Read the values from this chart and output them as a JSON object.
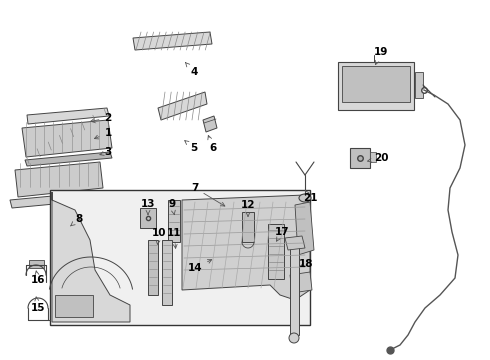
{
  "bg_color": "#ffffff",
  "lc": "#444444",
  "lw": 0.6,
  "fig_w": 4.9,
  "fig_h": 3.6,
  "dpi": 100,
  "annotations": [
    [
      "2",
      108,
      118,
      87,
      122
    ],
    [
      "1",
      108,
      133,
      91,
      140
    ],
    [
      "3",
      108,
      152,
      99,
      155
    ],
    [
      "4",
      194,
      72,
      185,
      62
    ],
    [
      "5",
      194,
      148,
      184,
      140
    ],
    [
      "6",
      213,
      148,
      207,
      132
    ],
    [
      "7",
      195,
      188,
      228,
      208
    ],
    [
      "8",
      79,
      219,
      68,
      228
    ],
    [
      "9",
      172,
      204,
      175,
      218
    ],
    [
      "10",
      159,
      233,
      157,
      248
    ],
    [
      "11",
      174,
      233,
      176,
      252
    ],
    [
      "12",
      248,
      205,
      248,
      220
    ],
    [
      "13",
      148,
      204,
      148,
      218
    ],
    [
      "14",
      195,
      268,
      215,
      258
    ],
    [
      "15",
      38,
      308,
      36,
      296
    ],
    [
      "16",
      38,
      280,
      36,
      270
    ],
    [
      "17",
      282,
      232,
      276,
      242
    ],
    [
      "18",
      306,
      264,
      297,
      268
    ],
    [
      "19",
      381,
      52,
      374,
      68
    ],
    [
      "20",
      381,
      158,
      364,
      162
    ],
    [
      "21",
      310,
      198,
      305,
      190
    ]
  ]
}
